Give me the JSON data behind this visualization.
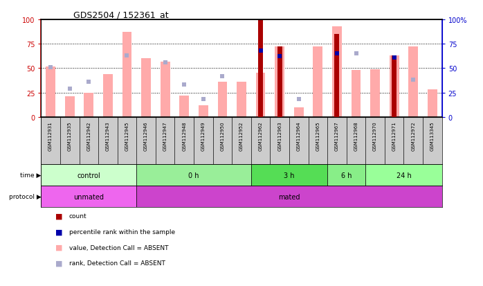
{
  "title": "GDS2504 / 152361_at",
  "samples": [
    "GSM112931",
    "GSM112935",
    "GSM112942",
    "GSM112943",
    "GSM112945",
    "GSM112946",
    "GSM112947",
    "GSM112948",
    "GSM112949",
    "GSM112950",
    "GSM112952",
    "GSM112962",
    "GSM112963",
    "GSM112964",
    "GSM112965",
    "GSM112967",
    "GSM112968",
    "GSM112970",
    "GSM112971",
    "GSM112972",
    "GSM113345"
  ],
  "pink_bar_values": [
    52,
    21,
    25,
    44,
    87,
    60,
    57,
    22,
    12,
    36,
    36,
    45,
    72,
    10,
    72,
    93,
    48,
    49,
    63,
    72,
    28
  ],
  "blue_square_values": [
    51,
    29,
    36,
    null,
    63,
    null,
    56,
    33,
    18,
    42,
    null,
    null,
    null,
    18,
    null,
    65,
    65,
    null,
    61,
    38,
    null
  ],
  "red_bar_values": [
    null,
    null,
    null,
    null,
    null,
    null,
    null,
    null,
    null,
    null,
    null,
    100,
    72,
    null,
    null,
    85,
    null,
    null,
    63,
    null,
    null
  ],
  "dark_blue_square_values": [
    null,
    null,
    null,
    null,
    null,
    null,
    null,
    null,
    null,
    null,
    null,
    68,
    62,
    null,
    null,
    65,
    null,
    null,
    61,
    null,
    null
  ],
  "ylim": [
    0,
    100
  ],
  "grid_lines": [
    25,
    50,
    75
  ],
  "left_axis_color": "#cc0000",
  "right_axis_color": "#0000cc",
  "pink_bar_color": "#ffaaaa",
  "blue_sq_color": "#aaaacc",
  "red_bar_color": "#aa0000",
  "dark_blue_sq_color": "#0000aa",
  "bar_width": 0.5,
  "sample_row_color": "#cccccc",
  "background_color": "#ffffff",
  "time_groups": [
    {
      "label": "control",
      "indices": [
        0,
        1,
        2,
        3,
        4
      ],
      "color": "#ccffcc"
    },
    {
      "label": "0 h",
      "indices": [
        5,
        6,
        7,
        8,
        9,
        10
      ],
      "color": "#99ee99"
    },
    {
      "label": "3 h",
      "indices": [
        11,
        12,
        13,
        14
      ],
      "color": "#55dd55"
    },
    {
      "label": "6 h",
      "indices": [
        15,
        16
      ],
      "color": "#88ee88"
    },
    {
      "label": "24 h",
      "indices": [
        17,
        18,
        19,
        20
      ],
      "color": "#99ff99"
    }
  ],
  "proto_groups": [
    {
      "label": "unmated",
      "indices": [
        0,
        1,
        2,
        3,
        4
      ],
      "color": "#ee66ee"
    },
    {
      "label": "mated",
      "indices": [
        5,
        6,
        7,
        8,
        9,
        10,
        11,
        12,
        13,
        14,
        15,
        16,
        17,
        18,
        19,
        20
      ],
      "color": "#cc44cc"
    }
  ]
}
